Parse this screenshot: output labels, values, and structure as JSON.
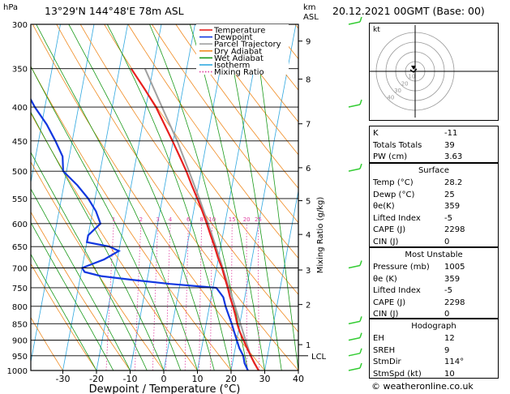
{
  "header": {
    "location": "13°29'N  144°48'E  78m  ASL",
    "datetime": "20.12.2021  00GMT  (Base: 00)"
  },
  "copyright": "© weatheronline.co.uk",
  "chart_data": {
    "type": "line",
    "subtype": "skew-T log-P",
    "xlabel": "Dewpoint / Temperature (°C)",
    "ylabel_left": "hPa",
    "ylabel_right": "Mixing Ratio (g/kg)",
    "right_axis_title": "km\nASL",
    "pressure_levels": [
      300,
      350,
      400,
      450,
      500,
      550,
      600,
      650,
      700,
      750,
      800,
      850,
      900,
      950,
      1000
    ],
    "temperature_ticks": [
      -30,
      -20,
      -10,
      0,
      10,
      20,
      30,
      40
    ],
    "km_ticks": [
      {
        "km": "1",
        "p": 914
      },
      {
        "km": "2",
        "p": 795
      },
      {
        "km": "3",
        "p": 705
      },
      {
        "km": "4",
        "p": 623
      },
      {
        "km": "5",
        "p": 554
      },
      {
        "km": "6",
        "p": 494
      },
      {
        "km": "7",
        "p": 424
      },
      {
        "km": "8",
        "p": 363
      },
      {
        "km": "9",
        "p": 318
      }
    ],
    "lcl_label": "LCL",
    "lcl_pressure": 950,
    "mixing_ratio_labels": [
      "1",
      "2",
      "3",
      "4",
      "6",
      "8",
      "10",
      "15",
      "20",
      "25"
    ],
    "legend": [
      "Temperature",
      "Dewpoint",
      "Parcel Trajectory",
      "Dry Adiabat",
      "Wet Adiabat",
      "Isotherm",
      "Mixing Ratio"
    ],
    "colors": {
      "temperature": "#e8201f",
      "dewpoint": "#1238e0",
      "parcel": "#a0a0a0",
      "dry_adiabat": "#f08a20",
      "wet_adiabat": "#1a9a1a",
      "isotherm": "#30a8e0",
      "mixing_ratio": "#e040a0"
    },
    "series": [
      {
        "name": "Temperature",
        "p": [
          1000,
          975,
          950,
          925,
          900,
          875,
          850,
          825,
          800,
          775,
          750,
          725,
          700,
          675,
          650,
          625,
          600,
          575,
          550,
          525,
          500,
          475,
          450,
          425,
          400,
          375,
          350
        ],
        "t": [
          28.2,
          26.5,
          25.0,
          23.5,
          22.0,
          20.5,
          19.2,
          18.2,
          17.0,
          15.6,
          14.4,
          13.0,
          11.6,
          9.8,
          8.2,
          6.4,
          4.6,
          2.6,
          0.4,
          -2.0,
          -4.4,
          -7.2,
          -10.2,
          -13.5,
          -17.0,
          -21.5,
          -26.5
        ]
      },
      {
        "name": "Dewpoint",
        "p": [
          1000,
          975,
          950,
          925,
          900,
          875,
          850,
          825,
          800,
          775,
          750,
          740,
          730,
          720,
          710,
          700,
          680,
          660,
          650,
          640,
          625,
          600,
          575,
          550,
          525,
          500,
          475,
          450,
          425,
          400,
          375,
          350,
          325,
          300
        ],
        "t": [
          25.0,
          23.6,
          22.8,
          21.2,
          20.0,
          18.8,
          17.6,
          16.2,
          14.8,
          13.6,
          11.0,
          -3.0,
          -14.0,
          -24.0,
          -29.0,
          -30.0,
          -24.0,
          -20.0,
          -23.0,
          -30.0,
          -30.0,
          -27.0,
          -29.0,
          -32.0,
          -36.0,
          -41.0,
          -42.0,
          -45.0,
          -48.5,
          -53.0,
          -57.0,
          -58.0,
          -60.0,
          -67.0
        ]
      },
      {
        "name": "Parcel Trajectory",
        "p": [
          1000,
          950,
          900,
          850,
          800,
          750,
          700,
          650,
          600,
          550,
          500,
          450,
          400,
          350
        ],
        "t": [
          28.2,
          25.0,
          22.6,
          20.2,
          17.6,
          14.8,
          11.8,
          8.6,
          5.0,
          1.0,
          -3.6,
          -8.8,
          -15.2,
          -22.4
        ]
      }
    ],
    "hodograph": {
      "rings": [
        "10",
        "20",
        "30",
        "40"
      ],
      "unit": "kt"
    }
  },
  "indices": {
    "top": [
      {
        "k": "K",
        "v": "-11"
      },
      {
        "k": "Totals Totals",
        "v": "39"
      },
      {
        "k": "PW (cm)",
        "v": "3.63"
      }
    ],
    "surface_title": "Surface",
    "surface": [
      {
        "k": "Temp (°C)",
        "v": "28.2"
      },
      {
        "k": "Dewp (°C)",
        "v": "25"
      },
      {
        "k": "θe(K)",
        "v": "359"
      },
      {
        "k": "Lifted Index",
        "v": "-5"
      },
      {
        "k": "CAPE (J)",
        "v": "2298"
      },
      {
        "k": "CIN (J)",
        "v": "0"
      }
    ],
    "unstable_title": "Most Unstable",
    "unstable": [
      {
        "k": "Pressure (mb)",
        "v": "1005"
      },
      {
        "k": "θe (K)",
        "v": "359"
      },
      {
        "k": "Lifted Index",
        "v": "-5"
      },
      {
        "k": "CAPE (J)",
        "v": "2298"
      },
      {
        "k": "CIN (J)",
        "v": "0"
      }
    ],
    "hodograph_title": "Hodograph",
    "hodograph": [
      {
        "k": "EH",
        "v": "12"
      },
      {
        "k": "SREH",
        "v": "9"
      },
      {
        "k": "StmDir",
        "v": "114°"
      },
      {
        "k": "StmSpd (kt)",
        "v": "10"
      }
    ]
  }
}
